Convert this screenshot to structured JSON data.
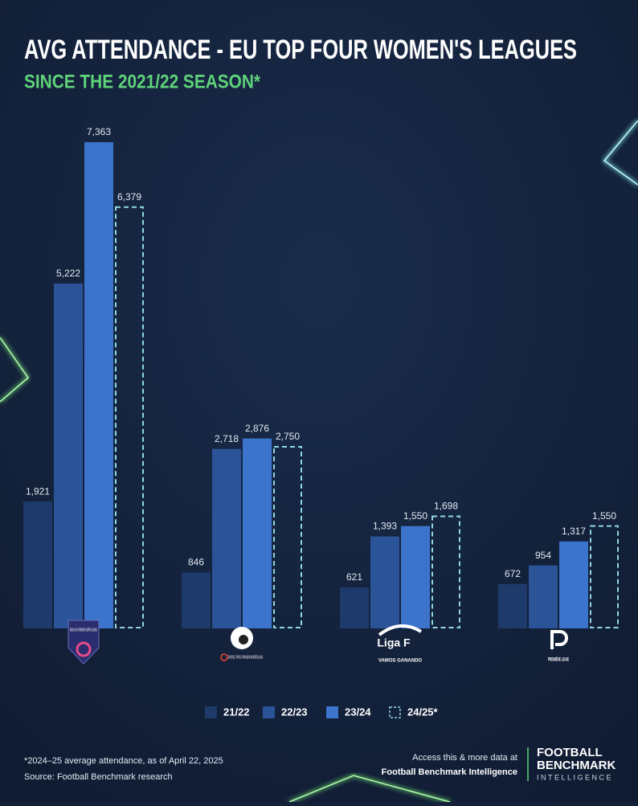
{
  "chart_data": {
    "type": "bar",
    "title": "AVG ATTENDANCE - EU TOP FOUR WOMEN'S LEAGUES",
    "subtitle": "SINCE THE 2021/22 SEASON*",
    "categories": [
      "BARCLAYS WOMEN'S SUPER LEAGUE",
      "GOOGLE PIXEL FRAUEN-BUNDESLIGA",
      "Liga F",
      "PREMIÈRE LIGUE"
    ],
    "liga_f_tagline": "VAMOS GANANDO",
    "series": [
      {
        "name": "21/22",
        "color": "#1e3a6a",
        "values": [
          1921,
          846,
          621,
          672
        ],
        "value_labels": [
          "1,921",
          "846",
          "621",
          "672"
        ]
      },
      {
        "name": "22/23",
        "color": "#2a5497",
        "values": [
          5222,
          2718,
          1393,
          954
        ],
        "value_labels": [
          "5,222",
          "2,718",
          "1,393",
          "954"
        ]
      },
      {
        "name": "23/24",
        "color": "#3d74cb",
        "values": [
          7363,
          2876,
          1550,
          1317
        ],
        "value_labels": [
          "7,363",
          "2,876",
          "1,550",
          "1,317"
        ]
      },
      {
        "name": "24/25*",
        "color": "#8fd6e2",
        "style": "dashed",
        "values": [
          6379,
          2750,
          1698,
          1550
        ],
        "value_labels": [
          "6,379",
          "2,750",
          "1,698",
          "1,550"
        ]
      }
    ],
    "ylim": [
      0,
      8000
    ],
    "grid": false,
    "legend": "bottom"
  },
  "footer": {
    "note": "*2024–25 average attendance, as of April 22, 2025",
    "source": "Source: Football Benchmark research",
    "cta": "Access this & more data at",
    "cta_link": "Football Benchmark Intelligence",
    "brand": [
      "FOOTBALL",
      "BENCHMARK",
      "INTELLIGENCE"
    ]
  }
}
